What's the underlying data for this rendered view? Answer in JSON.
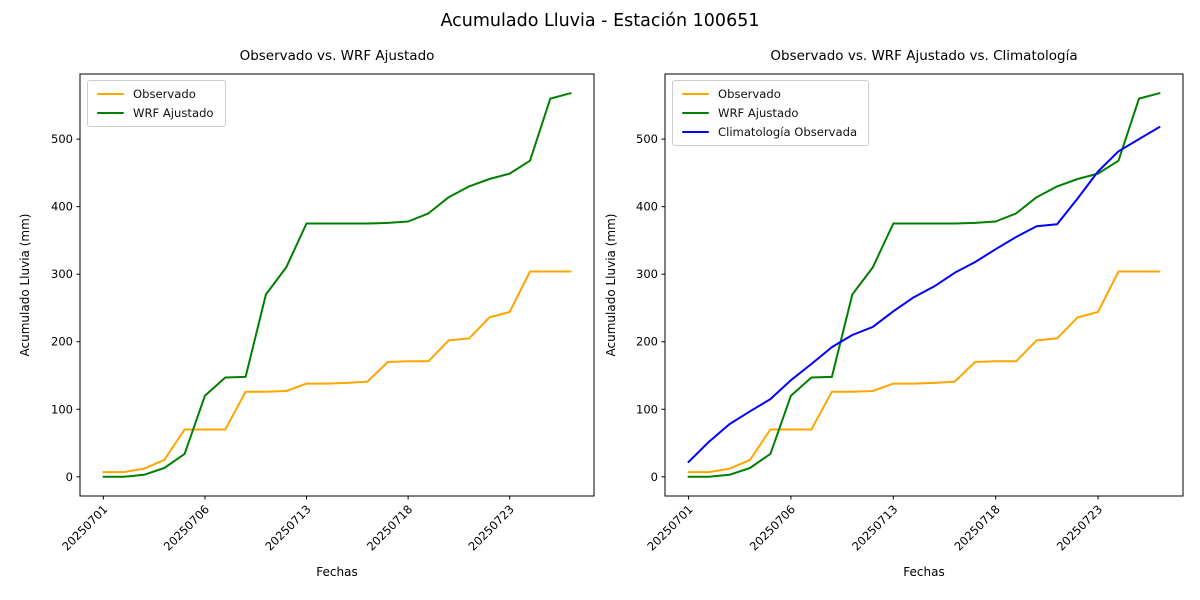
{
  "figure": {
    "suptitle": "Acumulado Lluvia - Estación 100651"
  },
  "chart_data": [
    {
      "type": "line",
      "title": "Observado vs. WRF Ajustado",
      "xlabel": "Fechas",
      "ylabel": "Acumulado Lluvia (mm)",
      "y_ticks": [
        0,
        100,
        200,
        300,
        400,
        500
      ],
      "x_tick_labels": [
        "20250701",
        "20250706",
        "20250713",
        "20250718",
        "20250723"
      ],
      "x_tick_indices": [
        0,
        5,
        10,
        15,
        20
      ],
      "n_points": 24,
      "ylim": [
        -28,
        596
      ],
      "grid": false,
      "legend_position": "upper left",
      "series": [
        {
          "name": "Observado",
          "color": "#FFA500",
          "values": [
            7,
            7,
            12,
            25,
            70,
            70,
            70,
            126,
            126,
            127,
            138,
            138,
            139,
            141,
            170,
            171,
            171,
            202,
            205,
            236,
            244,
            304,
            304,
            304
          ]
        },
        {
          "name": "WRF Ajustado",
          "color": "#008000",
          "values": [
            0,
            0,
            3,
            13,
            34,
            120,
            147,
            148,
            270,
            310,
            375,
            375,
            375,
            375,
            376,
            378,
            390,
            414,
            430,
            441,
            449,
            468,
            560,
            568
          ]
        }
      ]
    },
    {
      "type": "line",
      "title": "Observado vs. WRF Ajustado vs. Climatología",
      "xlabel": "Fechas",
      "ylabel": "Acumulado Lluvia (mm)",
      "y_ticks": [
        0,
        100,
        200,
        300,
        400,
        500
      ],
      "x_tick_labels": [
        "20250701",
        "20250706",
        "20250713",
        "20250718",
        "20250723"
      ],
      "x_tick_indices": [
        0,
        5,
        10,
        15,
        20
      ],
      "n_points": 24,
      "ylim": [
        -28,
        596
      ],
      "grid": false,
      "legend_position": "upper left",
      "series": [
        {
          "name": "Observado",
          "color": "#FFA500",
          "values": [
            7,
            7,
            12,
            25,
            70,
            70,
            70,
            126,
            126,
            127,
            138,
            138,
            139,
            141,
            170,
            171,
            171,
            202,
            205,
            236,
            244,
            304,
            304,
            304
          ]
        },
        {
          "name": "WRF Ajustado",
          "color": "#008000",
          "values": [
            0,
            0,
            3,
            13,
            34,
            120,
            147,
            148,
            270,
            310,
            375,
            375,
            375,
            375,
            376,
            378,
            390,
            414,
            430,
            441,
            449,
            468,
            560,
            568
          ]
        },
        {
          "name": "Climatología Observada",
          "color": "#0000FF",
          "values": [
            22,
            52,
            78,
            97,
            115,
            143,
            167,
            192,
            210,
            222,
            245,
            266,
            282,
            302,
            318,
            337,
            355,
            371,
            374,
            412,
            452,
            482,
            500,
            518
          ]
        }
      ]
    }
  ]
}
